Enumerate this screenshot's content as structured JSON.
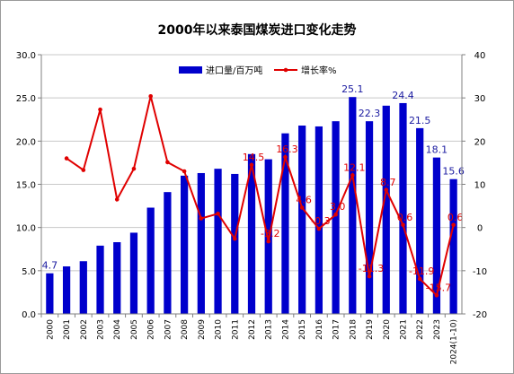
{
  "chart_data": {
    "type": "bar",
    "title": "2000年以来泰国煤炭进口变化走势",
    "categories": [
      "2000",
      "2001",
      "2002",
      "2003",
      "2004",
      "2005",
      "2006",
      "2007",
      "2008",
      "2009",
      "2010",
      "2011",
      "2012",
      "2013",
      "2014",
      "2015",
      "2016",
      "2017",
      "2018",
      "2019",
      "2020",
      "2021",
      "2022",
      "2023",
      "2024(1-10)"
    ],
    "series": [
      {
        "name": "进口量/百万吨",
        "kind": "bar",
        "axis": "left",
        "color": "#0000cc",
        "values": [
          4.7,
          5.5,
          6.1,
          7.9,
          8.3,
          9.4,
          12.3,
          14.1,
          16.0,
          16.3,
          16.8,
          16.2,
          18.5,
          17.9,
          20.9,
          21.8,
          21.7,
          22.3,
          25.1,
          22.3,
          24.1,
          24.4,
          21.5,
          18.1,
          15.6
        ]
      },
      {
        "name": "增长率%",
        "kind": "line",
        "axis": "right",
        "color": "#e00000",
        "values": [
          null,
          16.0,
          13.3,
          27.3,
          6.5,
          13.6,
          30.4,
          15.1,
          13.0,
          2.1,
          3.2,
          -2.6,
          14.5,
          -3.2,
          16.3,
          4.6,
          -0.3,
          3.0,
          12.1,
          -11.3,
          8.7,
          0.6,
          -11.9,
          -15.7,
          0.6
        ]
      }
    ],
    "bar_labels": [
      {
        "index": 0,
        "text": "4.7"
      },
      {
        "index": 18,
        "text": "25.1"
      },
      {
        "index": 19,
        "text": "22.3"
      },
      {
        "index": 21,
        "text": "24.4"
      },
      {
        "index": 22,
        "text": "21.5"
      },
      {
        "index": 23,
        "text": "18.1"
      },
      {
        "index": 24,
        "text": "15.6"
      }
    ],
    "line_labels": [
      {
        "index": 12,
        "text": "14.5"
      },
      {
        "index": 13,
        "text": "-3.2"
      },
      {
        "index": 14,
        "text": "16.3"
      },
      {
        "index": 15,
        "text": "4.6"
      },
      {
        "index": 16,
        "text": "-0.3"
      },
      {
        "index": 17,
        "text": "3.0"
      },
      {
        "index": 18,
        "text": "12.1"
      },
      {
        "index": 19,
        "text": "-11.3"
      },
      {
        "index": 20,
        "text": "8.7"
      },
      {
        "index": 21,
        "text": "0.6"
      },
      {
        "index": 22,
        "text": "-11.9"
      },
      {
        "index": 23,
        "text": "-15.7"
      },
      {
        "index": 24,
        "text": "0.6"
      }
    ],
    "y_left": {
      "min": 0,
      "max": 30,
      "ticks": [
        "0.0",
        "5.0",
        "10.0",
        "15.0",
        "20.0",
        "25.0",
        "30.0"
      ]
    },
    "y_right": {
      "min": -20,
      "max": 40,
      "ticks": [
        "-20",
        "-10",
        "0",
        "10",
        "20",
        "30",
        "40"
      ]
    },
    "grid": true,
    "legend_position": "top-center",
    "bar_label_color": "#1a1aa0",
    "line_label_color": "#e00000"
  }
}
